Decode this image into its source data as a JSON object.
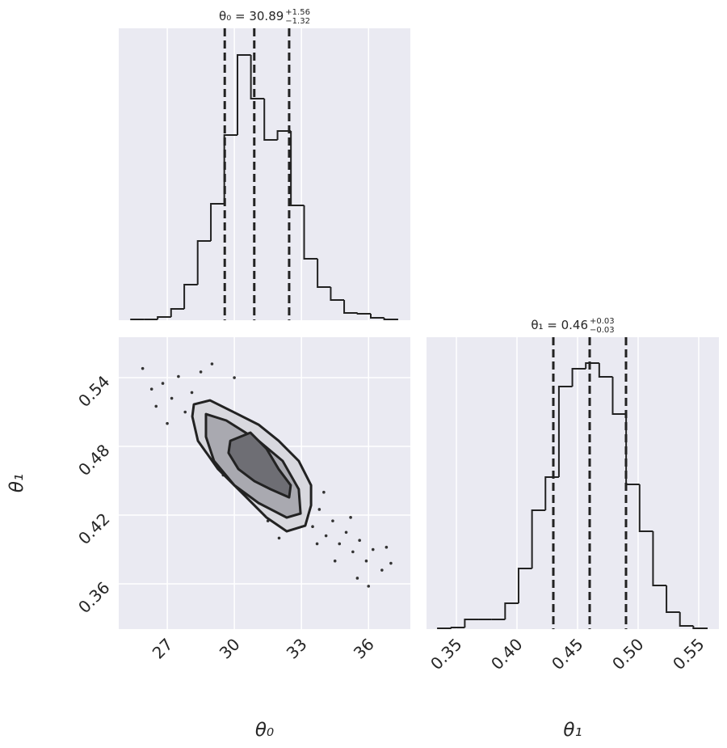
{
  "chart_data": [
    {
      "type": "histogram",
      "title": "θ₀ = 30.89",
      "title_sup": "+1.56",
      "title_sub": "−1.32",
      "bins": [
        25.38,
        25.98,
        26.57,
        27.17,
        27.76,
        28.36,
        28.95,
        29.55,
        30.14,
        30.74,
        31.34,
        31.93,
        32.53,
        33.12,
        33.72,
        34.31,
        34.91,
        35.51,
        36.1,
        36.7,
        37.29
      ],
      "counts": [
        1,
        1,
        4,
        14,
        44,
        98,
        144,
        229,
        328,
        274,
        223,
        234,
        142,
        76,
        41,
        25,
        9,
        8,
        3,
        1
      ],
      "quantiles": [
        29.57,
        30.89,
        32.45
      ],
      "color": "#222222",
      "xlim": [
        24.83,
        37.87
      ],
      "ylim": [
        0,
        361
      ],
      "xticks": [
        27,
        30,
        33,
        36
      ],
      "show_xtick_labels": false,
      "grid": true
    },
    {
      "type": "scatter",
      "xlabel": "θ₀",
      "ylabel": "θ₁",
      "color": "#333333",
      "x": [
        25.9,
        26.3,
        26.8,
        27.2,
        27.5,
        27.8,
        28.1,
        28.3,
        28.6,
        28.9,
        29.1,
        29.3,
        29.6,
        29.8,
        30.0,
        30.2,
        30.4,
        30.6,
        30.8,
        31.0,
        31.2,
        31.4,
        31.6,
        31.8,
        32.0,
        32.3,
        32.6,
        32.9,
        33.2,
        33.5,
        33.8,
        34.1,
        34.4,
        34.7,
        35.0,
        35.3,
        35.6,
        35.9,
        36.2,
        36.6,
        37.0,
        29.0,
        30.0,
        27.0,
        32.0,
        34.0,
        35.5,
        36.0,
        28.5,
        33.0,
        31.5,
        30.5,
        29.5,
        32.5,
        34.5,
        26.5,
        33.7,
        31.0,
        35.2,
        36.8
      ],
      "y": [
        0.548,
        0.53,
        0.535,
        0.522,
        0.541,
        0.51,
        0.527,
        0.498,
        0.515,
        0.492,
        0.508,
        0.478,
        0.495,
        0.47,
        0.488,
        0.461,
        0.479,
        0.452,
        0.47,
        0.445,
        0.466,
        0.44,
        0.458,
        0.432,
        0.45,
        0.428,
        0.444,
        0.418,
        0.435,
        0.41,
        0.425,
        0.402,
        0.415,
        0.395,
        0.405,
        0.388,
        0.398,
        0.38,
        0.39,
        0.372,
        0.378,
        0.552,
        0.54,
        0.5,
        0.4,
        0.44,
        0.365,
        0.358,
        0.545,
        0.452,
        0.415,
        0.5,
        0.455,
        0.47,
        0.38,
        0.515,
        0.395,
        0.486,
        0.418,
        0.392
      ],
      "contours": [
        {
          "color": "#d8d8de",
          "x": [
            28.19,
            28.91,
            30.0,
            31.08,
            31.98,
            32.88,
            33.43,
            33.43,
            33.17,
            32.34,
            31.44,
            30.36,
            29.27,
            28.37,
            28.12
          ],
          "y": [
            0.5167,
            0.5202,
            0.5096,
            0.499,
            0.4849,
            0.4673,
            0.4461,
            0.4285,
            0.4108,
            0.4059,
            0.4179,
            0.439,
            0.4602,
            0.4849,
            0.5061
          ]
        },
        {
          "color": "#a9a9b0",
          "x": [
            28.73,
            29.64,
            31.08,
            32.16,
            32.88,
            32.96,
            32.34,
            31.08,
            30.0,
            29.09,
            28.73
          ],
          "y": [
            0.5082,
            0.5026,
            0.4849,
            0.4673,
            0.4426,
            0.4214,
            0.4179,
            0.4306,
            0.4461,
            0.4673,
            0.4884
          ]
        },
        {
          "color": "#6e6e74",
          "x": [
            29.82,
            30.72,
            31.44,
            31.98,
            32.52,
            32.45,
            31.62,
            30.9,
            30.18,
            29.74
          ],
          "y": [
            0.4849,
            0.492,
            0.4779,
            0.4602,
            0.4461,
            0.4355,
            0.4426,
            0.4496,
            0.4602,
            0.4743
          ]
        }
      ],
      "xlim": [
        24.83,
        37.87
      ],
      "ylim": [
        0.3205,
        0.5753
      ],
      "xticks": [
        27,
        30,
        33,
        36
      ],
      "yticks": [
        0.36,
        0.42,
        0.48,
        0.54
      ],
      "grid": true
    },
    {
      "type": "histogram",
      "title": "θ₁ = 0.46",
      "title_sup": "+0.03",
      "title_sub": "−0.03",
      "xlabel": "θ₁",
      "bins": [
        0.3347,
        0.3458,
        0.3569,
        0.368,
        0.3791,
        0.3902,
        0.4013,
        0.4124,
        0.4235,
        0.4346,
        0.4457,
        0.4568,
        0.4679,
        0.479,
        0.4901,
        0.5012,
        0.5123,
        0.5234,
        0.5345,
        0.5456,
        0.5567
      ],
      "counts": [
        1,
        2,
        12,
        12,
        12,
        32,
        75,
        147,
        188,
        300,
        322,
        329,
        312,
        266,
        179,
        121,
        54,
        21,
        4,
        1
      ],
      "quantiles": [
        0.43,
        0.46,
        0.49
      ],
      "color": "#222222",
      "xlim": [
        0.3253,
        0.5667
      ],
      "ylim": [
        0,
        361
      ],
      "xticks": [
        0.35,
        {
          "value": 0.4,
          "label": "0.40"
        },
        0.45,
        {
          "value": 0.5,
          "label": "0.50"
        },
        0.55
      ],
      "grid": true
    }
  ]
}
